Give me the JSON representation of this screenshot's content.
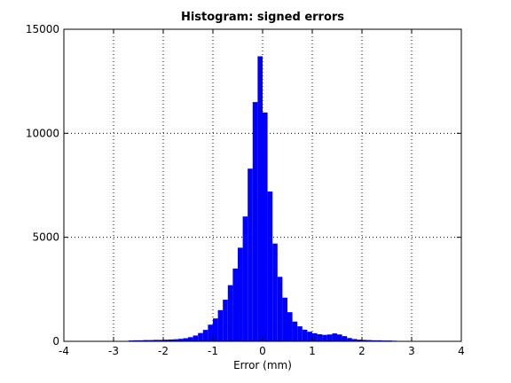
{
  "chart_data": {
    "type": "histogram",
    "title": "Histogram: signed errors",
    "xlabel": "Error (mm)",
    "bins": [
      -2.7,
      -2.6,
      -2.5,
      -2.4,
      -2.3,
      -2.2,
      -2.1,
      -2.0,
      -1.9,
      -1.8,
      -1.7,
      -1.6,
      -1.5,
      -1.4,
      -1.3,
      -1.2,
      -1.1,
      -1.0,
      -0.9,
      -0.8,
      -0.7,
      -0.6,
      -0.5,
      -0.4,
      -0.3,
      -0.2,
      -0.1,
      0.0,
      0.1,
      0.2,
      0.3,
      0.4,
      0.5,
      0.6,
      0.7,
      0.8,
      0.9,
      1.0,
      1.1,
      1.2,
      1.3,
      1.4,
      1.5,
      1.6,
      1.7,
      1.8,
      1.9,
      2.0,
      2.1,
      2.2,
      2.3,
      2.4,
      2.5,
      2.6,
      2.7,
      2.8
    ],
    "values": [
      40,
      50,
      50,
      60,
      60,
      70,
      70,
      80,
      90,
      100,
      120,
      150,
      200,
      280,
      400,
      550,
      800,
      1100,
      1500,
      2000,
      2700,
      3500,
      4500,
      6000,
      8300,
      11500,
      13700,
      11000,
      7200,
      4700,
      3100,
      2100,
      1400,
      950,
      720,
      560,
      460,
      390,
      340,
      310,
      330,
      380,
      330,
      250,
      160,
      110,
      80,
      70,
      60,
      50,
      50,
      40,
      40,
      30,
      20
    ],
    "color": "#0000ff",
    "xlim": [
      -4,
      4
    ],
    "xticks": [
      -4,
      -3,
      -2,
      -1,
      0,
      1,
      2,
      3,
      4
    ],
    "ylim": [
      0,
      15000
    ],
    "yticks": [
      0,
      5000,
      10000,
      15000
    ],
    "grid": true
  }
}
